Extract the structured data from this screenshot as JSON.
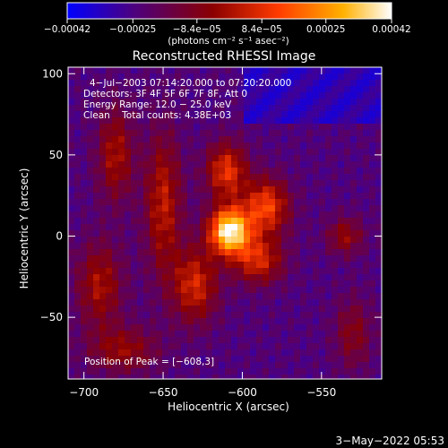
{
  "chart_data": {
    "type": "heatmap",
    "title": "Reconstructed RHESSI Image",
    "xlabel": "Heliocentric X (arcsec)",
    "ylabel": "Heliocentric Y (arcsec)",
    "xlim": [
      -710,
      -512
    ],
    "ylim": [
      -88,
      104
    ],
    "xticks": [
      -700,
      -650,
      -600,
      -550
    ],
    "yticks": [
      -50,
      0,
      50,
      100
    ],
    "xtick_labels": [
      "−700",
      "−650",
      "−600",
      "−550"
    ],
    "ytick_labels": [
      "−50",
      "0",
      "50",
      "100"
    ],
    "colorbar": {
      "range": [
        -0.00042,
        0.00042
      ],
      "tick_values": [
        -0.00042,
        -0.00025,
        -8.4e-05,
        8.4e-05,
        0.00025,
        0.00042
      ],
      "tick_labels": [
        "−0.00042",
        "−0.00025",
        "−8.4e−05",
        "8.4e−05",
        "0.00025",
        "0.00042"
      ],
      "unit_label": "(photons cm⁻² s⁻¹ asec⁻²)",
      "colors": [
        "#0000ff",
        "#4b0082",
        "#8b0000",
        "#ff3b00",
        "#ffb000",
        "#ffffff"
      ]
    },
    "info_lines": [
      "4−Jul−2003 07:14:20.000 to 07:20:20.000",
      "Detectors: 3F 4F 5F 6F 7F 8F, Att 0",
      "Energy Range: 12.0 − 25.0 keV",
      "Clean    Total counts: 4.38E+03"
    ],
    "peak_label": "Position of Peak = [−608,3]",
    "peak_position": [
      -608,
      3
    ],
    "sources": [
      {
        "x": -608,
        "y": 3,
        "amplitude": 1.0,
        "sx": 9,
        "sy": 10
      },
      {
        "x": -585,
        "y": 18,
        "amplitude": 0.55,
        "sx": 10,
        "sy": 12
      },
      {
        "x": -590,
        "y": -15,
        "amplitude": 0.45,
        "sx": 11,
        "sy": 10
      },
      {
        "x": -610,
        "y": 40,
        "amplitude": 0.5,
        "sx": 9,
        "sy": 12
      },
      {
        "x": -630,
        "y": -30,
        "amplitude": 0.45,
        "sx": 10,
        "sy": 16
      },
      {
        "x": -650,
        "y": 20,
        "amplitude": 0.4,
        "sx": 8,
        "sy": 30
      },
      {
        "x": -680,
        "y": 50,
        "amplitude": 0.35,
        "sx": 8,
        "sy": 20
      },
      {
        "x": -690,
        "y": -30,
        "amplitude": 0.35,
        "sx": 10,
        "sy": 18
      },
      {
        "x": -675,
        "y": -70,
        "amplitude": 0.3,
        "sx": 15,
        "sy": 10
      },
      {
        "x": -535,
        "y": 0,
        "amplitude": 0.3,
        "sx": 8,
        "sy": 8
      },
      {
        "x": -530,
        "y": -60,
        "amplitude": 0.25,
        "sx": 8,
        "sy": 15
      }
    ]
  },
  "footer": {
    "date": "3−May−2022 05:53"
  }
}
